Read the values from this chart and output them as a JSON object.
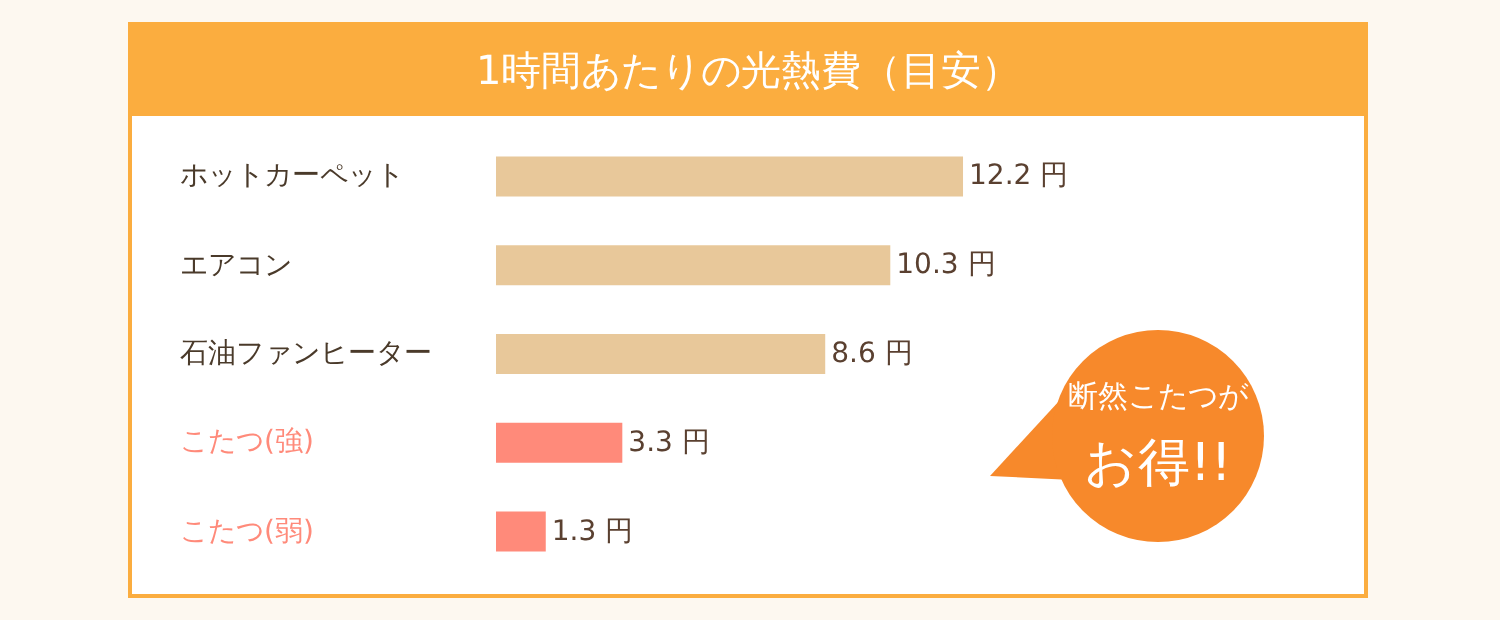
{
  "chart_data": {
    "type": "bar",
    "orientation": "horizontal",
    "title": "1時間あたりの光熱費（目安）",
    "categories": [
      "ホットカーペット",
      "エアコン",
      "石油ファンヒーター",
      "こたつ(強)",
      "こたつ(弱)"
    ],
    "values": [
      12.2,
      10.3,
      8.6,
      3.3,
      1.3
    ],
    "colors": [
      "#e8c89a",
      "#e8c89a",
      "#e8c89a",
      "#ff8a7a",
      "#ff8a7a"
    ],
    "value_labels": [
      "12.2 円",
      "10.3 円",
      "8.6 円",
      "3.3 円",
      "1.3 円"
    ],
    "annotations": [
      "断然こたつが",
      "お得!!"
    ]
  }
}
